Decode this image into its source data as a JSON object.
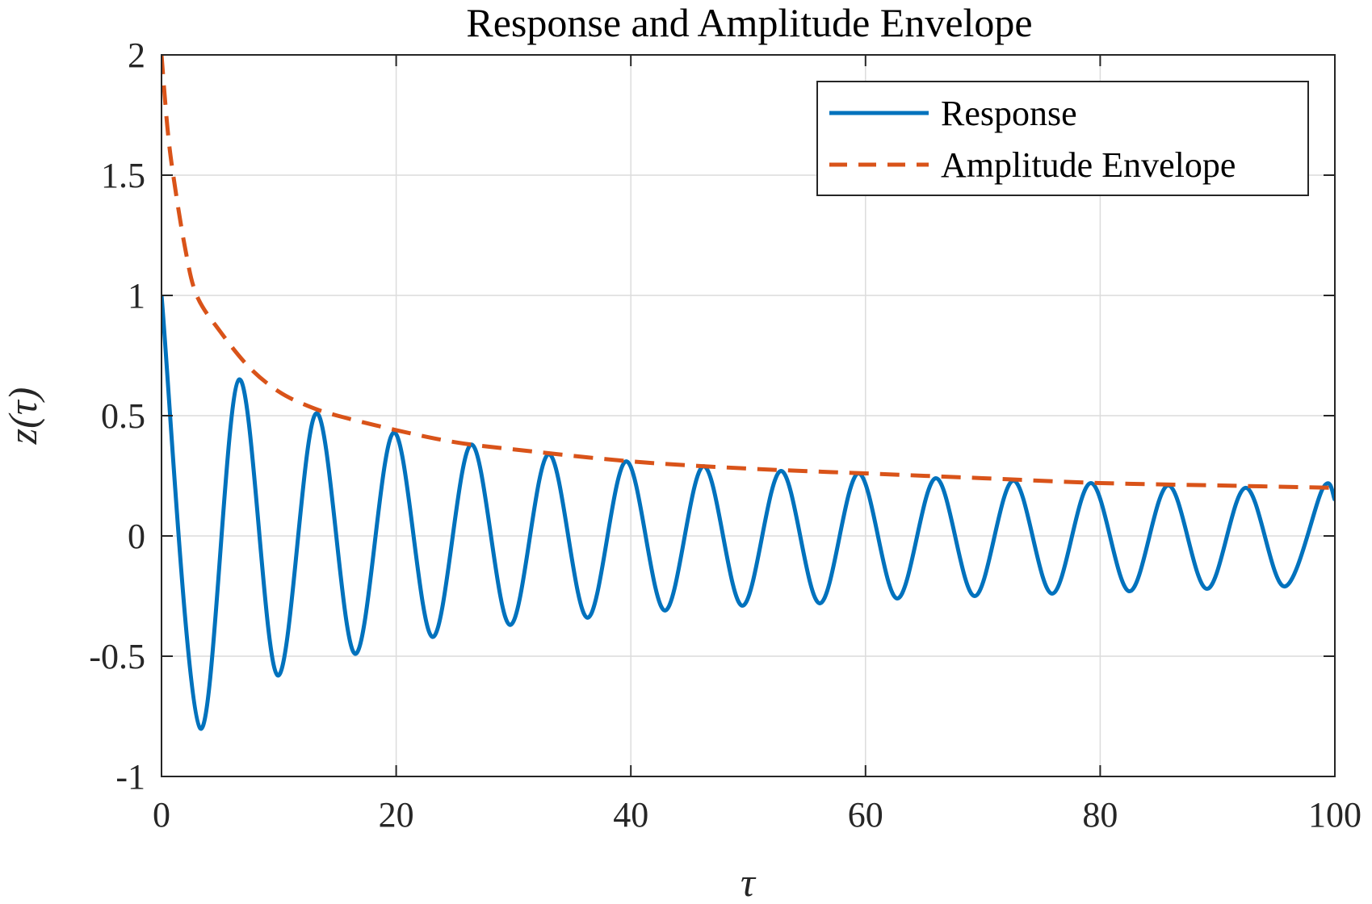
{
  "chart_data": {
    "type": "line",
    "title": "Response and Amplitude Envelope",
    "xlabel": "τ",
    "ylabel": "z(τ)",
    "xlim": [
      0,
      100
    ],
    "ylim": [
      -1,
      2
    ],
    "xticks": [
      0,
      20,
      40,
      60,
      80,
      100
    ],
    "xtick_labels": [
      "0",
      "20",
      "40",
      "60",
      "80",
      "100"
    ],
    "yticks": [
      -1,
      -0.5,
      0,
      0.5,
      1,
      1.5,
      2
    ],
    "ytick_labels": [
      "-1",
      "-0.5",
      "0",
      "0.5",
      "1",
      "1.5",
      "2"
    ],
    "grid": true,
    "legend_position": "top-right",
    "series": [
      {
        "name": "Response",
        "color": "#0072BD",
        "style": "solid",
        "x": [
          0,
          3.3,
          6.6,
          9.9,
          13.2,
          16.5,
          19.8,
          23.1,
          26.4,
          29.7,
          33.0,
          36.3,
          39.6,
          42.9,
          46.2,
          49.5,
          52.8,
          56.1,
          59.4,
          62.7,
          66.0,
          69.3,
          72.6,
          75.9,
          79.2,
          82.5,
          85.8,
          89.1,
          92.4,
          95.7,
          99.0,
          100
        ],
        "y": [
          1.0,
          -0.8,
          0.65,
          -0.58,
          0.51,
          -0.49,
          0.43,
          -0.42,
          0.38,
          -0.37,
          0.34,
          -0.34,
          0.31,
          -0.31,
          0.29,
          -0.29,
          0.27,
          -0.28,
          0.26,
          -0.26,
          0.24,
          -0.25,
          0.23,
          -0.24,
          0.22,
          -0.23,
          0.21,
          -0.22,
          0.2,
          -0.21,
          0.2,
          0.15
        ]
      },
      {
        "name": "Amplitude Envelope",
        "color": "#D95319",
        "style": "dashed",
        "x": [
          0,
          0.5,
          1,
          2,
          3,
          5,
          7.5,
          10,
          12.5,
          15,
          20,
          25,
          30,
          40,
          50,
          60,
          70,
          80,
          90,
          100
        ],
        "y": [
          2.0,
          1.7,
          1.5,
          1.2,
          1.0,
          0.85,
          0.7,
          0.6,
          0.54,
          0.5,
          0.44,
          0.39,
          0.36,
          0.31,
          0.28,
          0.26,
          0.24,
          0.22,
          0.21,
          0.2
        ]
      }
    ]
  }
}
